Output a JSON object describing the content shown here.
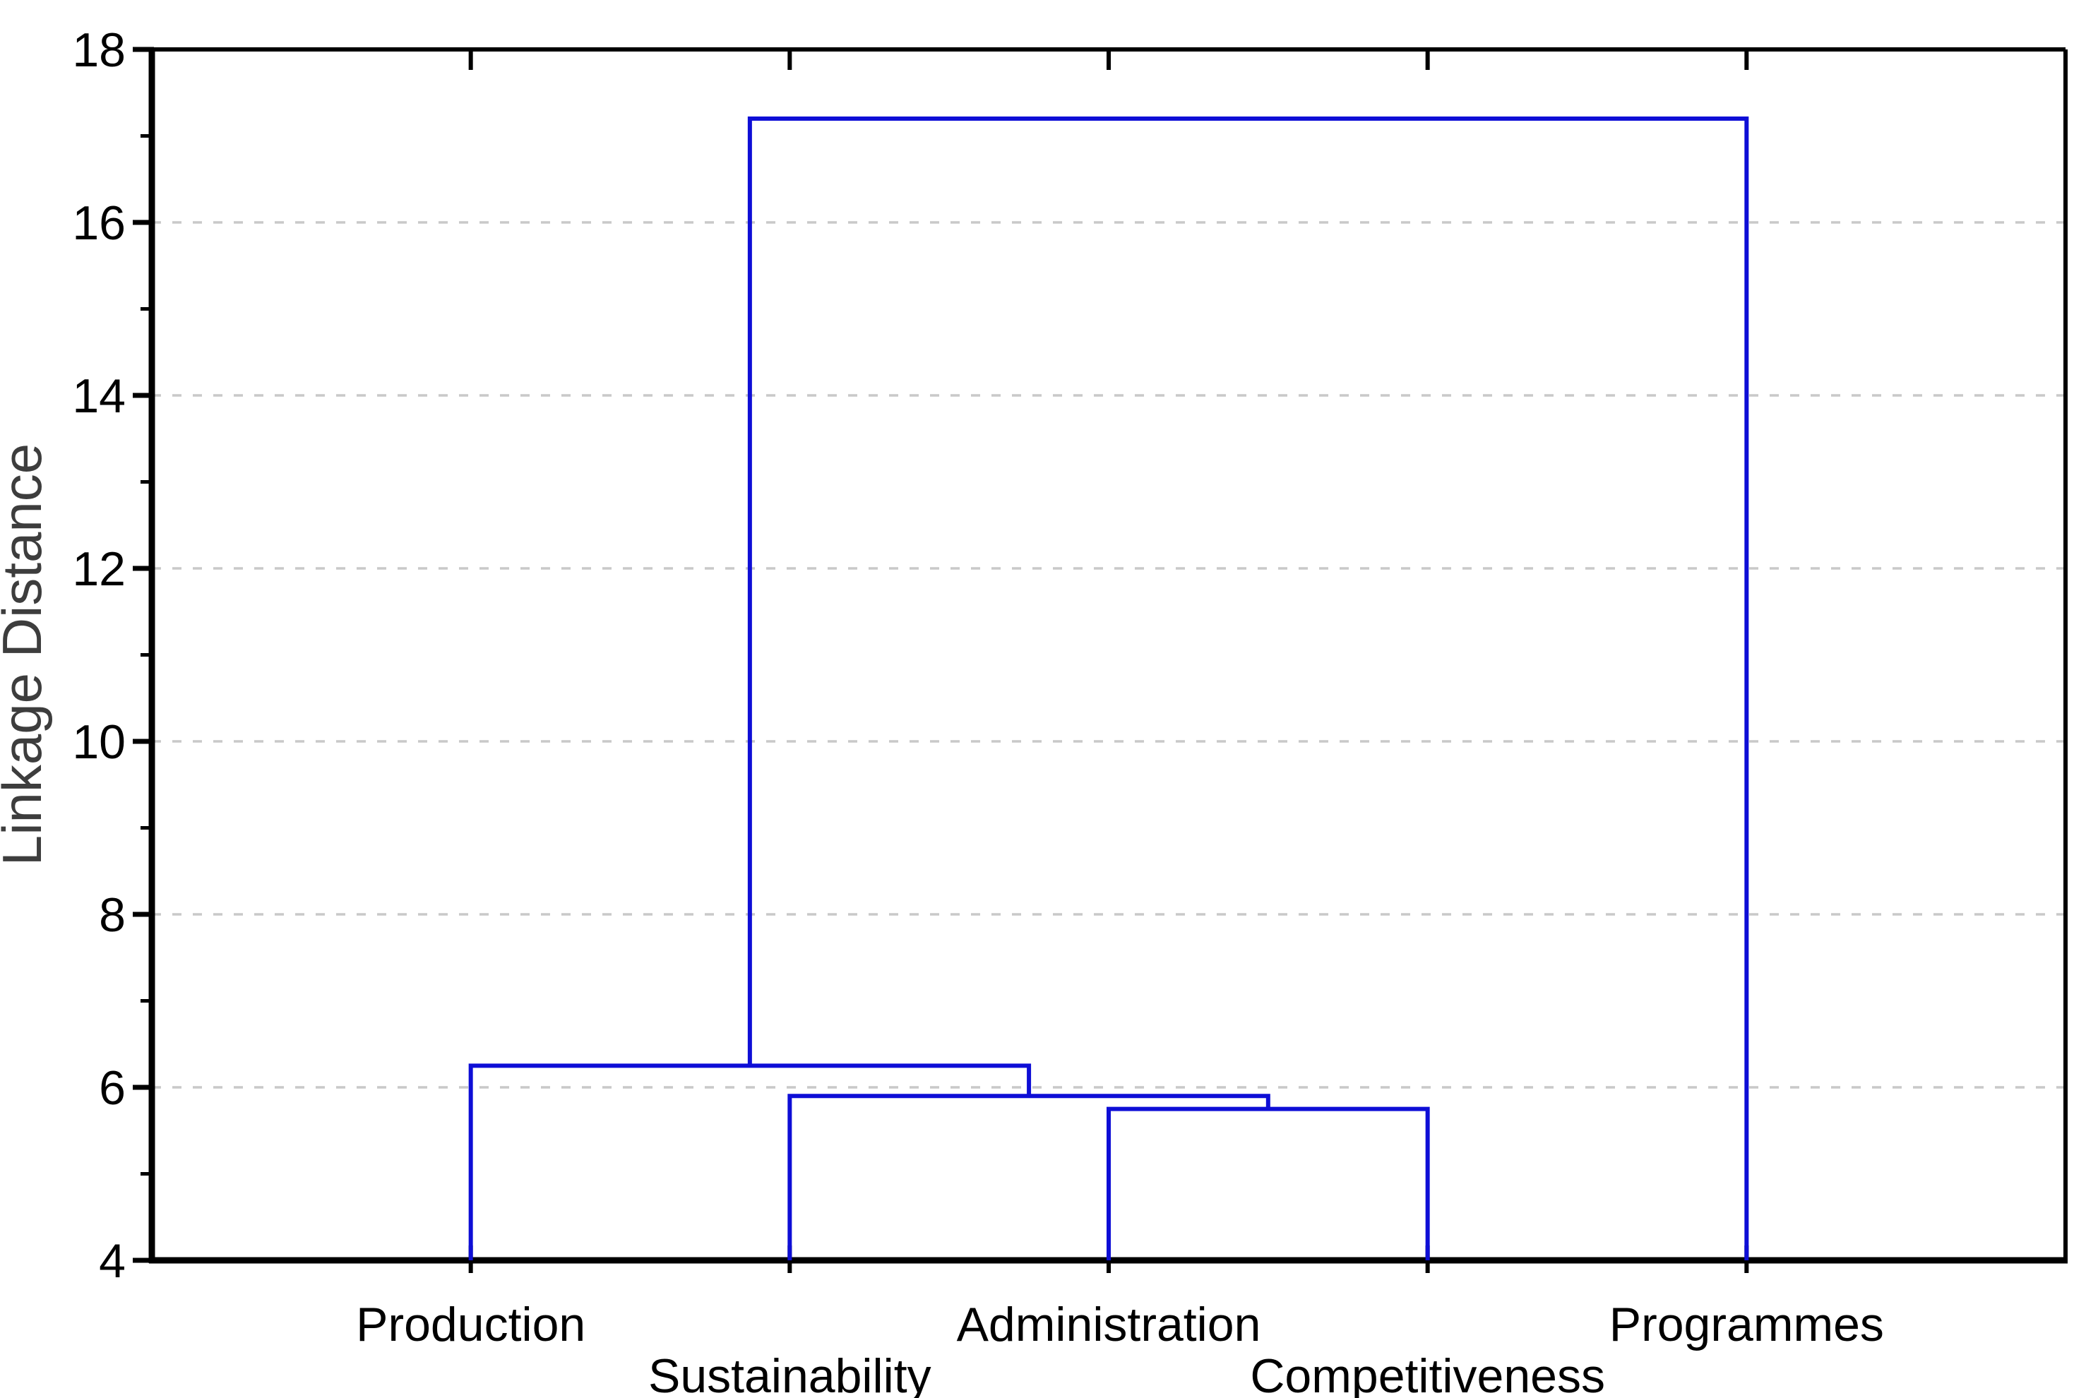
{
  "chart_data": {
    "type": "dendrogram",
    "title": "",
    "xlabel": "",
    "ylabel": "Linkage Distance",
    "ylim": [
      4,
      18
    ],
    "baseline": 4,
    "y_major_ticks": [
      4,
      6,
      8,
      10,
      12,
      14,
      16,
      18
    ],
    "y_minor_ticks": [
      5,
      7,
      9,
      11,
      13,
      15,
      17
    ],
    "gridline_values": [
      6,
      8,
      10,
      12,
      14,
      16
    ],
    "grid_style": "dashed",
    "legend": "none",
    "leaves": [
      "Production",
      "Sustainability",
      "Administration",
      "Competitiveness",
      "Programmes"
    ],
    "merges": [
      {
        "children": [
          "Administration",
          "Competitiveness"
        ],
        "height": 5.75
      },
      {
        "children": [
          "Sustainability",
          "@merge0"
        ],
        "height": 5.9
      },
      {
        "children": [
          "Production",
          "@merge1"
        ],
        "height": 6.25
      },
      {
        "children": [
          "@merge2",
          "Programmes"
        ],
        "height": 17.2
      }
    ],
    "colors": {
      "link": "#0e0ed6",
      "grid": "#c9c9c9",
      "axis": "#000000",
      "tick_label": "#000000",
      "leaf_label": "#000000",
      "axis_title": "#3d3d3d",
      "background": "#ffffff"
    }
  }
}
